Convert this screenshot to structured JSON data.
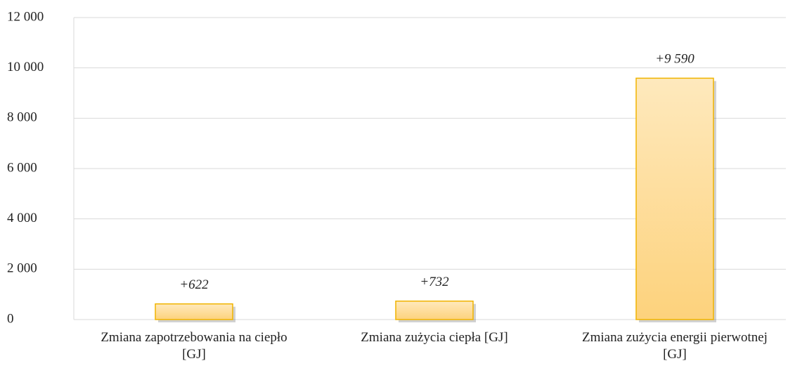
{
  "chart_data": {
    "type": "bar",
    "categories": [
      "Zmiana zapotrzebowania na ciepło [GJ]",
      "Zmiana zużycia ciepła [GJ]",
      "Zmiana zużycia energii pierwotnej [GJ]"
    ],
    "values": [
      622,
      732,
      9590
    ],
    "value_labels": [
      "+622",
      "+732",
      "+9 590"
    ],
    "color": "#fdd98a",
    "ylim": [
      0,
      12000
    ],
    "yticks": [
      0,
      {
        "value": 2000,
        "label": "2 000"
      },
      {
        "value": 4000,
        "label": "4 000"
      },
      {
        "value": 6000,
        "label": "6 000"
      },
      {
        "value": 8000,
        "label": "8 000"
      },
      {
        "value": 10000,
        "label": "10 000"
      },
      {
        "value": 12000,
        "label": "12 000"
      }
    ],
    "grid": true
  }
}
